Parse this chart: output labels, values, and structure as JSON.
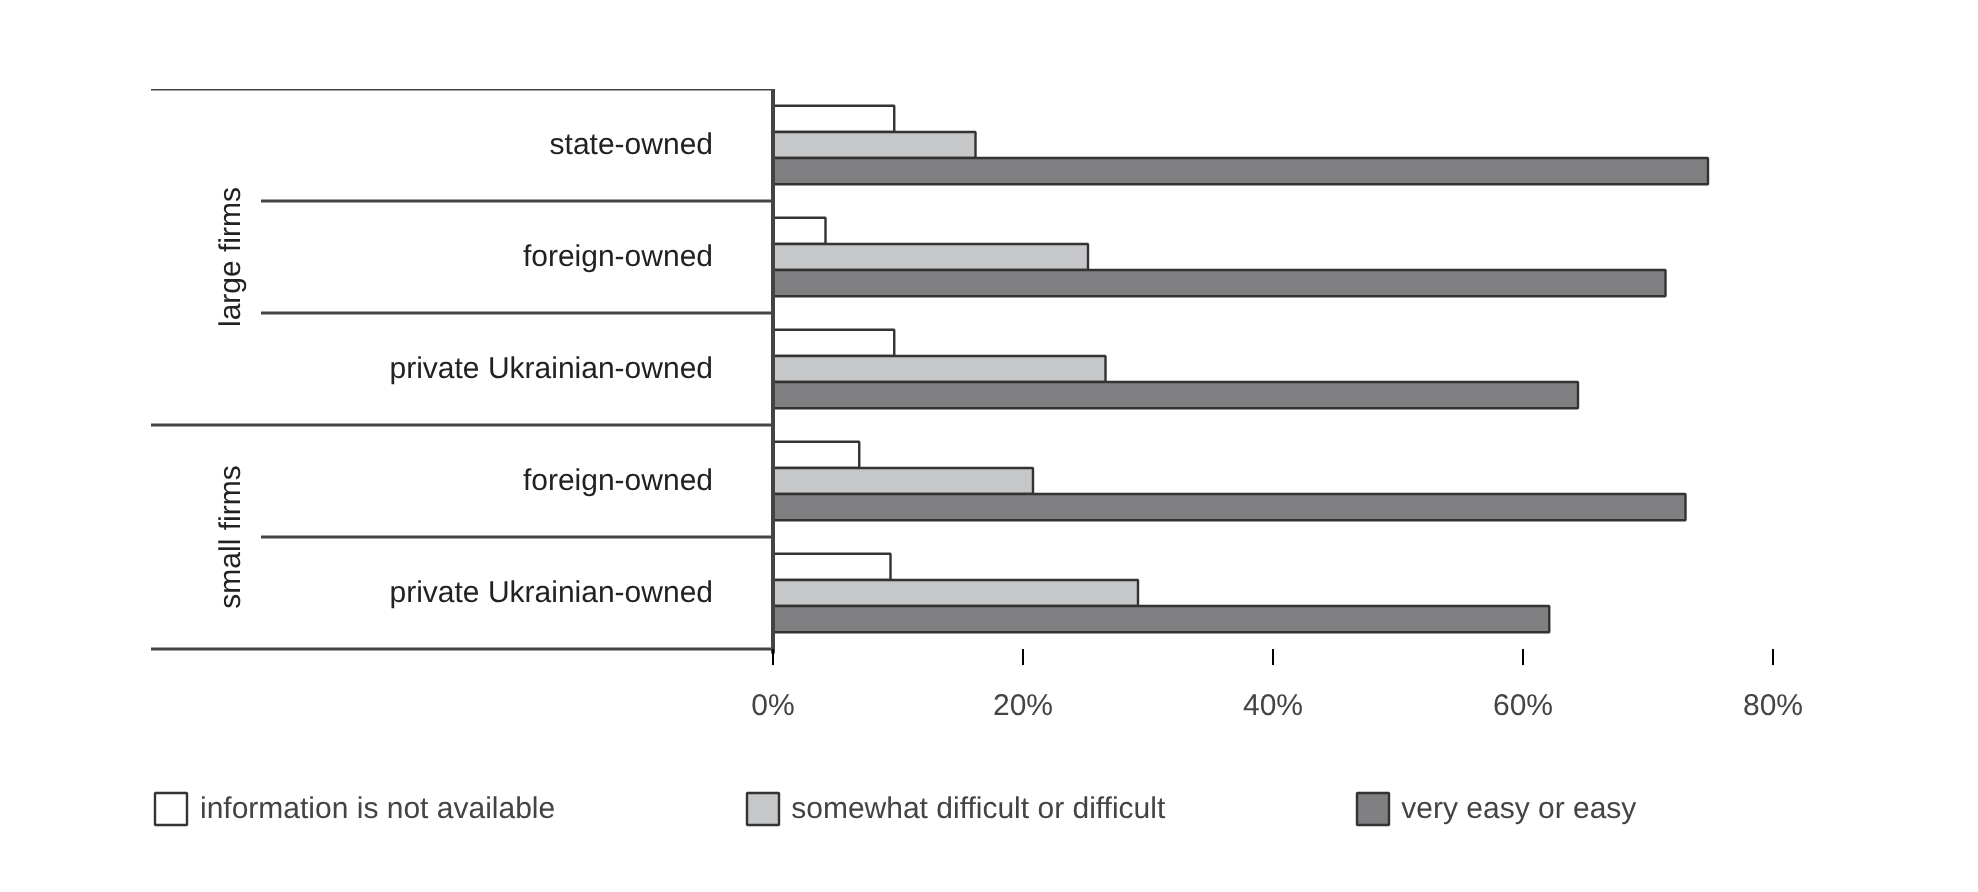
{
  "chart_data": {
    "type": "bar",
    "orientation": "horizontal",
    "categories": [
      "state-owned",
      "foreign-owned",
      "private Ukrainian-owned",
      "foreign-owned",
      "private Ukrainian-owned"
    ],
    "series": [
      {
        "name": "information is not available",
        "color": "#ffffff",
        "values": [
          9.7,
          4.2,
          9.7,
          6.9,
          9.4
        ]
      },
      {
        "name": "somewhat difficult or difficult",
        "color": "#c6c7c9",
        "values": [
          16.2,
          25.2,
          26.6,
          20.8,
          29.2
        ]
      },
      {
        "name": "very easy or easy",
        "color": "#808083",
        "values": [
          74.8,
          71.4,
          64.4,
          73.0,
          62.1
        ]
      }
    ],
    "xlim": [
      0,
      80
    ],
    "xticks": [
      {
        "value": 0,
        "label": "0%"
      },
      {
        "value": 20,
        "label": "20%"
      },
      {
        "value": 40,
        "label": "40%"
      },
      {
        "value": 60,
        "label": "60%"
      },
      {
        "value": 80,
        "label": "80%"
      }
    ],
    "annotations": [
      "large firms",
      "small firms"
    ],
    "grid": false,
    "legend": "bottom"
  }
}
